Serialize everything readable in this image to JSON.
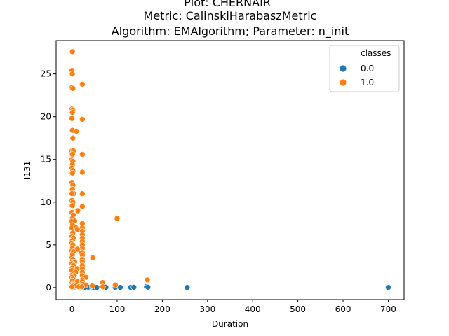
{
  "chart_data": {
    "type": "scatter",
    "title": "Plot: CHERNAIR",
    "subtitle_lines": [
      "Metric: CalinskiHarabaszMetric",
      "Algorithm: EMAlgorithm; Parameter: n_init"
    ],
    "xlabel": "Duration",
    "ylabel": "I131",
    "xlim": [
      -35,
      735
    ],
    "ylim": [
      -1.4,
      28.9
    ],
    "x_ticks": [
      0,
      100,
      200,
      300,
      400,
      500,
      600,
      700
    ],
    "y_ticks": [
      0,
      5,
      10,
      15,
      20,
      25
    ],
    "grid": false,
    "legend": {
      "title": "classes",
      "placement": "top-right"
    },
    "series": [
      {
        "name": "0.0",
        "color": "#1f77b4",
        "points": [
          [
            0,
            0.02
          ],
          [
            1,
            0.04
          ],
          [
            2,
            0.01
          ],
          [
            3,
            0.05
          ],
          [
            4,
            0.02
          ],
          [
            5,
            0.03
          ],
          [
            6,
            0.01
          ],
          [
            8,
            0.04
          ],
          [
            10,
            0.02
          ],
          [
            12,
            0.05
          ],
          [
            15,
            0.03
          ],
          [
            18,
            0.02
          ],
          [
            20,
            0.06
          ],
          [
            22,
            0.04
          ],
          [
            24,
            0.03
          ],
          [
            30,
            0.02
          ],
          [
            36,
            0.05
          ],
          [
            45,
            0.02
          ],
          [
            48,
            0.03
          ],
          [
            55,
            0.02
          ],
          [
            66,
            0.08
          ],
          [
            68,
            0.05
          ],
          [
            70,
            0.03
          ],
          [
            72,
            0.02
          ],
          [
            75,
            0.04
          ],
          [
            95,
            0.02
          ],
          [
            96,
            0.04
          ],
          [
            107,
            0.03
          ],
          [
            130,
            0.02
          ],
          [
            137,
            0.04
          ],
          [
            165,
            0.1
          ],
          [
            168,
            0.05
          ],
          [
            255,
            0.02
          ],
          [
            700,
            0.02
          ]
        ]
      },
      {
        "name": "1.0",
        "color": "#ff7f0e",
        "points": [
          [
            1,
            27.6
          ],
          [
            0,
            25.4
          ],
          [
            1,
            25.0
          ],
          [
            0,
            23.4
          ],
          [
            2,
            23.3
          ],
          [
            23,
            23.8
          ],
          [
            0,
            20.9
          ],
          [
            2,
            20.8
          ],
          [
            1,
            20.5
          ],
          [
            0,
            19.8
          ],
          [
            23,
            19.7
          ],
          [
            1,
            18.4
          ],
          [
            10,
            18.3
          ],
          [
            2,
            17.5
          ],
          [
            0,
            16.0
          ],
          [
            3,
            16.0
          ],
          [
            1,
            15.6
          ],
          [
            23,
            15.6
          ],
          [
            0,
            15.0
          ],
          [
            2,
            14.8
          ],
          [
            1,
            14.4
          ],
          [
            0,
            14.0
          ],
          [
            2,
            13.7
          ],
          [
            1,
            13.4
          ],
          [
            23,
            13.5
          ],
          [
            0,
            12.3
          ],
          [
            2,
            12.0
          ],
          [
            1,
            11.5
          ],
          [
            4,
            11.0
          ],
          [
            0,
            11.0
          ],
          [
            23,
            11.0
          ],
          [
            0,
            10.2
          ],
          [
            2,
            10.0
          ],
          [
            1,
            9.6
          ],
          [
            23,
            9.5
          ],
          [
            13,
            9.0
          ],
          [
            0,
            8.8
          ],
          [
            3,
            8.5
          ],
          [
            1,
            8.1
          ],
          [
            100,
            8.1
          ],
          [
            0,
            7.8
          ],
          [
            6,
            7.8
          ],
          [
            23,
            7.5
          ],
          [
            1,
            7.3
          ],
          [
            0,
            7.0
          ],
          [
            9,
            7.0
          ],
          [
            23,
            7.0
          ],
          [
            12,
            6.8
          ],
          [
            23,
            6.6
          ],
          [
            2,
            6.4
          ],
          [
            23,
            6.2
          ],
          [
            0,
            6.0
          ],
          [
            3,
            5.8
          ],
          [
            23,
            5.8
          ],
          [
            1,
            5.5
          ],
          [
            23,
            5.4
          ],
          [
            0,
            5.2
          ],
          [
            2,
            5.0
          ],
          [
            23,
            5.0
          ],
          [
            1,
            4.6
          ],
          [
            23,
            4.6
          ],
          [
            12,
            4.5
          ],
          [
            0,
            4.3
          ],
          [
            3,
            4.2
          ],
          [
            23,
            4.1
          ],
          [
            20,
            4.0
          ],
          [
            1,
            3.8
          ],
          [
            23,
            3.8
          ],
          [
            0,
            3.5
          ],
          [
            2,
            3.3
          ],
          [
            46,
            3.5
          ],
          [
            23,
            3.3
          ],
          [
            1,
            3.0
          ],
          [
            6,
            3.0
          ],
          [
            23,
            3.0
          ],
          [
            0,
            2.8
          ],
          [
            3,
            2.6
          ],
          [
            23,
            2.6
          ],
          [
            1,
            2.3
          ],
          [
            12,
            2.2
          ],
          [
            23,
            2.2
          ],
          [
            0,
            2.0
          ],
          [
            8,
            1.8
          ],
          [
            23,
            1.8
          ],
          [
            1,
            1.5
          ],
          [
            5,
            1.4
          ],
          [
            23,
            1.4
          ],
          [
            0,
            1.2
          ],
          [
            2,
            1.0
          ],
          [
            31,
            1.2
          ],
          [
            23,
            0.9
          ],
          [
            167,
            0.9
          ],
          [
            1,
            0.8
          ],
          [
            12,
            0.7
          ],
          [
            23,
            0.7
          ],
          [
            68,
            0.6
          ],
          [
            0,
            0.5
          ],
          [
            2,
            0.4
          ],
          [
            24,
            0.4
          ],
          [
            1,
            0.3
          ],
          [
            6,
            0.3
          ],
          [
            96,
            0.3
          ],
          [
            30,
            0.3
          ],
          [
            3,
            0.2
          ],
          [
            10,
            0.2
          ],
          [
            45,
            0.2
          ],
          [
            0,
            0.1
          ],
          [
            15,
            0.1
          ],
          [
            22,
            0.1
          ],
          [
            68,
            0.1
          ]
        ]
      }
    ]
  }
}
